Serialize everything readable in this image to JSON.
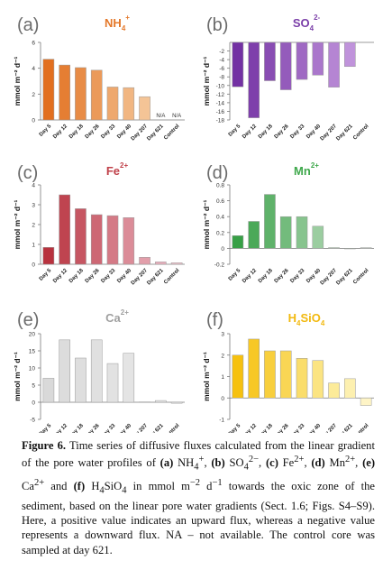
{
  "chart_data": [
    {
      "panel": "(a)",
      "type": "bar",
      "title": "NH₄⁺",
      "title_main": "NH",
      "title_sub": "4",
      "title_sup": "+",
      "title_color": "#e4782a",
      "ylabel": "mmol m⁻² d⁻¹",
      "ylim": [
        0,
        6
      ],
      "yticks": [
        0,
        2,
        4,
        6
      ],
      "categories": [
        "Day 5",
        "Day 12",
        "Day 18",
        "Day 26",
        "Day 33",
        "Day 40",
        "Day 207",
        "Day 621",
        "Control"
      ],
      "values": [
        4.7,
        4.25,
        4.05,
        3.85,
        2.55,
        2.5,
        1.8,
        null,
        null
      ],
      "colors": [
        "#e26f1f",
        "#e57e33",
        "#e88c46",
        "#eb9a5a",
        "#eea86e",
        "#f1b682",
        "#f4c496",
        "#f7d2aa",
        "#f9e0c0"
      ],
      "bar_labels": [
        "",
        "",
        "",
        "",
        "",
        "",
        "",
        "N/A",
        "N/A"
      ]
    },
    {
      "panel": "(b)",
      "type": "bar",
      "title": "SO₄²⁻",
      "title_main": "SO",
      "title_sub": "4",
      "title_sup": "2-",
      "title_color": "#7a3ea8",
      "ylabel": "mmol m⁻² d⁻¹",
      "ylim": [
        -18,
        0
      ],
      "yticks": [
        -2,
        -4,
        -6,
        -8,
        -10,
        -12,
        -14,
        -16,
        -18
      ],
      "categories": [
        "Day 5",
        "Day 12",
        "Day 18",
        "Day 26",
        "Day 33",
        "Day 40",
        "Day 207",
        "Day 621",
        "Control"
      ],
      "values": [
        -10.3,
        -17.5,
        -8.9,
        -11.0,
        -8.6,
        -7.6,
        -10.4,
        -5.6,
        null
      ],
      "colors": [
        "#7331a3",
        "#7e3fab",
        "#894db3",
        "#945bbb",
        "#9f69c3",
        "#aa77cb",
        "#b585d3",
        "#c093db",
        "#cba1e3"
      ],
      "bar_labels": [
        "",
        "",
        "",
        "",
        "",
        "",
        "",
        "",
        ""
      ]
    },
    {
      "panel": "(c)",
      "type": "bar",
      "title": "Fe²⁺",
      "title_main": "Fe",
      "title_sub": "",
      "title_sup": "2+",
      "title_color": "#c0414a",
      "ylabel": "mmol m⁻² d⁻¹",
      "ylim": [
        0,
        4
      ],
      "yticks": [
        0,
        1,
        2,
        3,
        4
      ],
      "categories": [
        "Day 5",
        "Day 12",
        "Day 18",
        "Day 26",
        "Day 33",
        "Day 40",
        "Day 207",
        "Day 621",
        "Control"
      ],
      "values": [
        0.85,
        3.5,
        2.8,
        2.5,
        2.45,
        2.35,
        0.35,
        0.12,
        0.08
      ],
      "colors": [
        "#b8323e",
        "#bf4450",
        "#c65662",
        "#cd6874",
        "#d47a86",
        "#db8c98",
        "#e29eaa",
        "#e9b0bc",
        "#f0c4ce"
      ],
      "bar_labels": [
        "",
        "",
        "",
        "",
        "",
        "",
        "",
        "",
        ""
      ]
    },
    {
      "panel": "(d)",
      "type": "bar",
      "title": "Mn²⁺",
      "title_main": "Mn",
      "title_sub": "",
      "title_sup": "2+",
      "title_color": "#3fa84c",
      "ylabel": "mmol m⁻² d⁻¹",
      "ylim": [
        -0.2,
        0.8
      ],
      "yticks": [
        -0.2,
        0,
        0.2,
        0.4,
        0.6,
        0.8
      ],
      "categories": [
        "Day 5",
        "Day 12",
        "Day 18",
        "Day 26",
        "Day 33",
        "Day 40",
        "Day 207",
        "Day 621",
        "Control"
      ],
      "values": [
        0.16,
        0.34,
        0.68,
        0.4,
        0.4,
        0.28,
        0.01,
        0.0,
        0.01
      ],
      "colors": [
        "#37a046",
        "#4ba958",
        "#5fb26a",
        "#73bb7c",
        "#87c48e",
        "#9bcda0",
        "#afd6b2",
        "#c3dfc4",
        "#d7e8d6"
      ],
      "bar_labels": [
        "",
        "",
        "",
        "",
        "",
        "",
        "",
        "",
        ""
      ]
    },
    {
      "panel": "(e)",
      "type": "bar",
      "title": "Ca²⁺",
      "title_main": "Ca",
      "title_sub": "",
      "title_sup": "2+",
      "title_color": "#a0a0a0",
      "ylabel": "mmol m⁻² d⁻¹",
      "ylim": [
        -5,
        20
      ],
      "yticks": [
        -5,
        0,
        5,
        10,
        15,
        20
      ],
      "categories": [
        "Day 5",
        "Day 12",
        "Day 18",
        "Day 26",
        "Day 33",
        "Day 40",
        "Day 207",
        "Day 621",
        "Control"
      ],
      "values": [
        7.0,
        18.2,
        12.9,
        18.2,
        11.3,
        14.3,
        0.1,
        0.5,
        -0.3
      ],
      "colors": [
        "#d9d9d9",
        "#dcdcdc",
        "#dedede",
        "#e0e0e0",
        "#e2e2e2",
        "#e4e4e4",
        "#e6e6e6",
        "#e8e8e8",
        "#eaeaea"
      ],
      "bar_labels": [
        "",
        "",
        "",
        "",
        "",
        "",
        "",
        "",
        ""
      ]
    },
    {
      "panel": "(f)",
      "type": "bar",
      "title": "H₄SiO₄",
      "title_main": "H",
      "title_sub": "4",
      "title_rest": "SiO",
      "title_sub2": "4",
      "title_sup": "",
      "title_color": "#f2b90f",
      "ylabel": "mmol m⁻² d⁻¹",
      "ylim": [
        -1,
        3
      ],
      "yticks": [
        -1,
        0,
        1,
        2,
        3
      ],
      "categories": [
        "Day 5",
        "Day 12",
        "Day 18",
        "Day 26",
        "Day 33",
        "Day 40",
        "Day 207",
        "Day 621",
        "Control"
      ],
      "values": [
        2.0,
        2.75,
        2.2,
        2.2,
        1.85,
        1.75,
        0.7,
        0.9,
        -0.35
      ],
      "colors": [
        "#f6c10f",
        "#f7c826",
        "#f8cf3d",
        "#f9d654",
        "#fadd6b",
        "#fbe482",
        "#fceb99",
        "#fdf0b0",
        "#fef4c6"
      ],
      "bar_labels": [
        "",
        "",
        "",
        "",
        "",
        "",
        "",
        "",
        ""
      ]
    }
  ],
  "caption": {
    "label": "Figure 6.",
    "t1": " Time series of diffusive fluxes calculated from the linear gradient of the pore water profiles of ",
    "a": "(a)",
    "nh4": " NH",
    "nh4_sub": "4",
    "nh4_sup": "+",
    "t2": ", ",
    "b": "(b)",
    "so4": " SO",
    "so4_sub": "4",
    "so4_sup": "2−",
    "t3": ", ",
    "c": "(c)",
    "fe": " Fe",
    "fe_sup": "2+",
    "t4": ", ",
    "d": "(d)",
    "mn": " Mn",
    "mn_sup": "2+",
    "t5": ", ",
    "e": "(e)",
    "ca": " Ca",
    "ca_sup": "2+",
    "t6": " and ",
    "f": "(f)",
    "si": " H",
    "si_sub": "4",
    "si2": "SiO",
    "si2_sub": "4",
    "t7": " in mmol m",
    "u1_sup": "−2",
    "t8": " d",
    "u2_sup": "−1",
    "t9": " towards the oxic zone of the sediment, based on the linear pore water gradients (Sect. 1.6; Figs. S4–S9). Here, a positive value indicates an upward flux, whereas a negative value represents a downward flux. NA – not available. The control core was sampled at day 621."
  }
}
